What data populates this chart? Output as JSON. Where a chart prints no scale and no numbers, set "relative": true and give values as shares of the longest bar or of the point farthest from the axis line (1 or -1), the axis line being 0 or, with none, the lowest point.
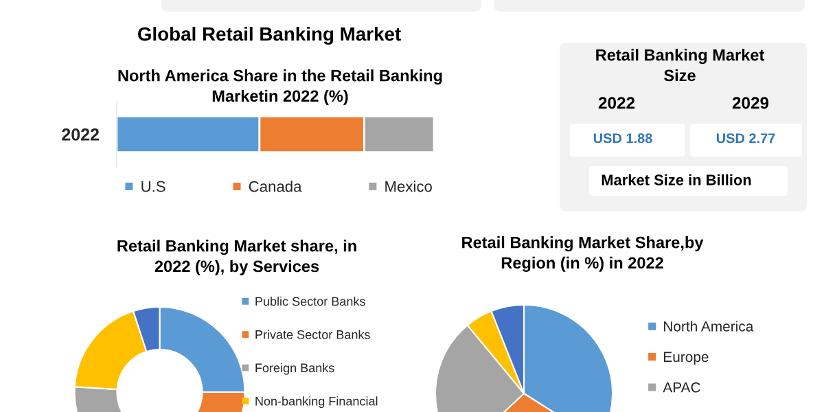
{
  "chart_data": [
    {
      "type": "bar",
      "title": "Global Retail Banking Market",
      "subtitle": "North America Share in the Retail Banking Marketin 2022 (%)",
      "orientation": "horizontal",
      "stacked": true,
      "relative": true,
      "categories": [
        "2022"
      ],
      "series": [
        {
          "name": "U.S",
          "color": "#5b9bd5",
          "values": [
            0.45
          ]
        },
        {
          "name": "Canada",
          "color": "#ed7d31",
          "values": [
            0.33
          ]
        },
        {
          "name": "Mexico",
          "color": "#a5a5a5",
          "values": [
            0.22
          ]
        }
      ],
      "legend": "bottom",
      "tick_labels": "y"
    },
    {
      "type": "other",
      "title": "Retail Banking Market Size",
      "annotations": [
        "2022",
        "2029",
        "USD 1.88",
        "USD 2.77",
        "Market Size in Billion"
      ]
    },
    {
      "type": "donut",
      "title": "Retail Banking Market share, in 2022 (%), by Services",
      "categories": [
        "Public Sector Banks",
        "Private Sector Banks",
        "Foreign Banks",
        "Non-banking Financial",
        null
      ],
      "values": [
        25,
        26,
        25,
        19,
        5
      ],
      "colors": [
        "#5b9bd5",
        "#ed7d31",
        "#a5a5a5",
        "#ffc000",
        "#4472c4"
      ],
      "legend": "right"
    },
    {
      "type": "pie",
      "title": "Retail Banking Market Share,by Region (in %) in 2022",
      "categories": [
        "North America",
        "Europe",
        "APAC",
        null,
        null
      ],
      "values": [
        34,
        29,
        26,
        5,
        6
      ],
      "colors": [
        "#5b9bd5",
        "#ed7d31",
        "#a5a5a5",
        "#ffc000",
        "#4472c4"
      ],
      "legend": "right"
    }
  ]
}
